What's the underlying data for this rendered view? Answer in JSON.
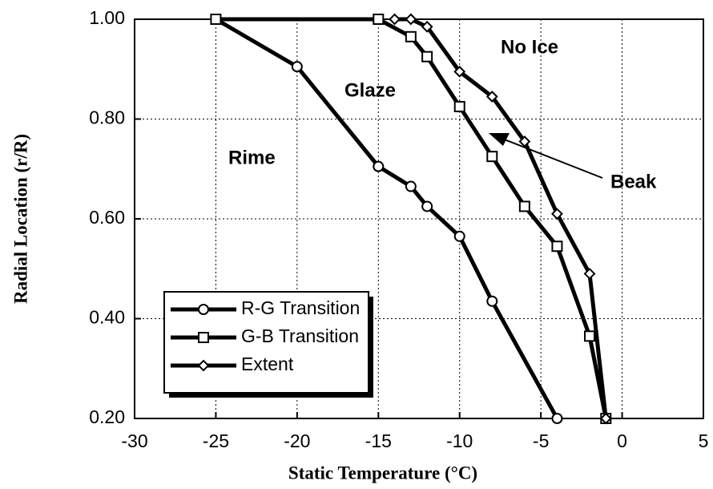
{
  "chart_data": {
    "type": "line",
    "xlabel": "Static Temperature (°C)",
    "ylabel": "Radial Location (r/R)",
    "annotations": [
      "No Ice",
      "Glaze",
      "Rime",
      "Beak"
    ],
    "xlim": [
      -30,
      5
    ],
    "xticks": [
      -30,
      -25,
      -20,
      -15,
      -10,
      -5,
      0,
      5
    ],
    "ylim": [
      0.2,
      1.0
    ],
    "yticks": [
      {
        "value": 0.2,
        "label": "0.20"
      },
      {
        "value": 0.4,
        "label": "0.40"
      },
      {
        "value": 0.6,
        "label": "0.60"
      },
      {
        "value": 0.8,
        "label": "0.80"
      },
      {
        "value": 1.0,
        "label": "1.00"
      }
    ],
    "grid": true,
    "legend": "lower left",
    "series": [
      {
        "name": "R-G Transition",
        "color": "#000000",
        "marker": "circle",
        "x": [
          -25,
          -20,
          -15,
          -13,
          -12,
          -10,
          -8,
          -4
        ],
        "values": [
          1.0,
          0.905,
          0.705,
          0.665,
          0.625,
          0.565,
          0.435,
          0.2
        ]
      },
      {
        "name": "G-B Transition",
        "color": "#000000",
        "marker": "square",
        "x": [
          -25,
          -15,
          -13,
          -12,
          -10,
          -8,
          -6,
          -4,
          -2,
          -1
        ],
        "values": [
          1.0,
          1.0,
          0.965,
          0.925,
          0.825,
          0.725,
          0.625,
          0.545,
          0.365,
          0.2
        ]
      },
      {
        "name": "Extent",
        "color": "#000000",
        "marker": "diamond",
        "x": [
          -14,
          -13,
          -12,
          -10,
          -8,
          -6,
          -4,
          -2,
          -1
        ],
        "values": [
          1.0,
          1.0,
          0.985,
          0.895,
          0.845,
          0.755,
          0.61,
          0.49,
          0.2
        ]
      }
    ]
  }
}
